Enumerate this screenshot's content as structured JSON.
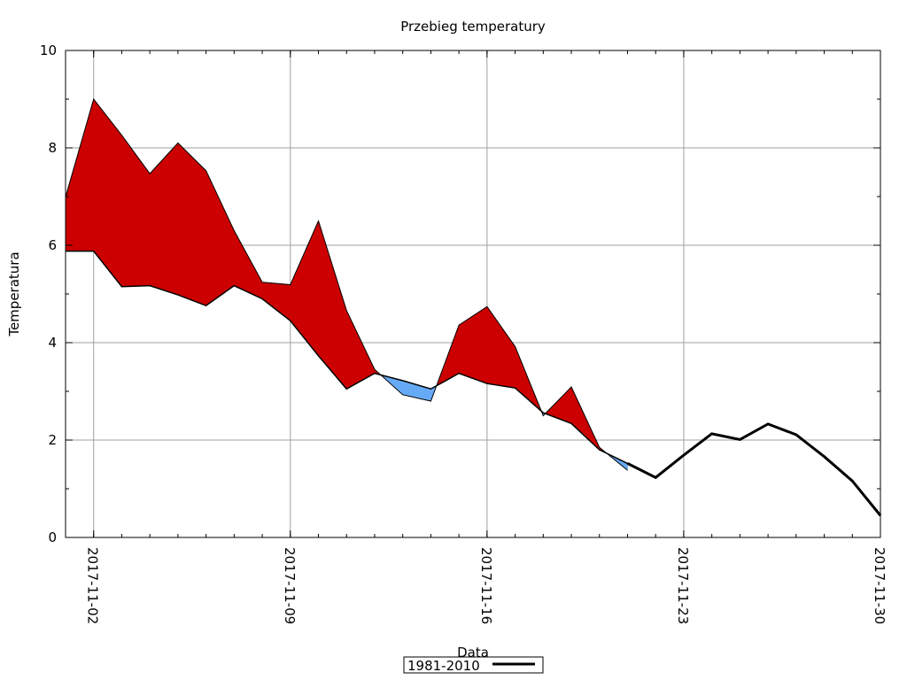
{
  "chart_data": {
    "type": "area",
    "title": "Przebieg temperatury",
    "xlabel": "Data",
    "ylabel": "Temperatura",
    "x_start": "2017-11-01",
    "x_end": "2017-11-30",
    "x_ticks": [
      "2017-11-02",
      "2017-11-09",
      "2017-11-16",
      "2017-11-23",
      "2017-11-30"
    ],
    "ylim": [
      0,
      10
    ],
    "y_ticks": [
      0,
      2,
      4,
      6,
      8,
      10
    ],
    "grid": true,
    "legend": {
      "placement": "bottom-center",
      "entries": [
        "1981-2010"
      ]
    },
    "colors": {
      "above_normal": "#cc0000",
      "below_normal": "#66aaf5",
      "normal_line": "#000000",
      "grid": "#a0a0a0"
    },
    "series": [
      {
        "name": "1981-2010",
        "role": "normal",
        "x": [
          "2017-11-01",
          "2017-11-02",
          "2017-11-03",
          "2017-11-04",
          "2017-11-05",
          "2017-11-06",
          "2017-11-07",
          "2017-11-08",
          "2017-11-09",
          "2017-11-10",
          "2017-11-11",
          "2017-11-12",
          "2017-11-13",
          "2017-11-14",
          "2017-11-15",
          "2017-11-16",
          "2017-11-17",
          "2017-11-18",
          "2017-11-19",
          "2017-11-20",
          "2017-11-21",
          "2017-11-22",
          "2017-11-23",
          "2017-11-24",
          "2017-11-25",
          "2017-11-26",
          "2017-11-27",
          "2017-11-28",
          "2017-11-29",
          "2017-11-30"
        ],
        "values": [
          5.88,
          5.88,
          5.15,
          5.17,
          4.98,
          4.76,
          5.17,
          4.9,
          4.45,
          3.73,
          3.05,
          3.37,
          3.22,
          3.05,
          3.37,
          3.16,
          3.07,
          2.56,
          2.34,
          1.8,
          1.52,
          1.23,
          1.69,
          2.13,
          2.01,
          2.33,
          2.11,
          1.66,
          1.16,
          0.45
        ]
      },
      {
        "role": "observed",
        "x": [
          "2017-11-01",
          "2017-11-02",
          "2017-11-03",
          "2017-11-04",
          "2017-11-05",
          "2017-11-06",
          "2017-11-07",
          "2017-11-08",
          "2017-11-09",
          "2017-11-10",
          "2017-11-11",
          "2017-11-12",
          "2017-11-13",
          "2017-11-14",
          "2017-11-15",
          "2017-11-16",
          "2017-11-17",
          "2017-11-18",
          "2017-11-19",
          "2017-11-20",
          "2017-11-21"
        ],
        "values": [
          6.99,
          9.0,
          8.26,
          7.47,
          8.1,
          7.53,
          6.3,
          5.24,
          5.19,
          6.5,
          4.66,
          3.45,
          2.93,
          2.8,
          4.36,
          4.74,
          3.92,
          2.5,
          3.09,
          1.85,
          1.38
        ]
      }
    ]
  }
}
